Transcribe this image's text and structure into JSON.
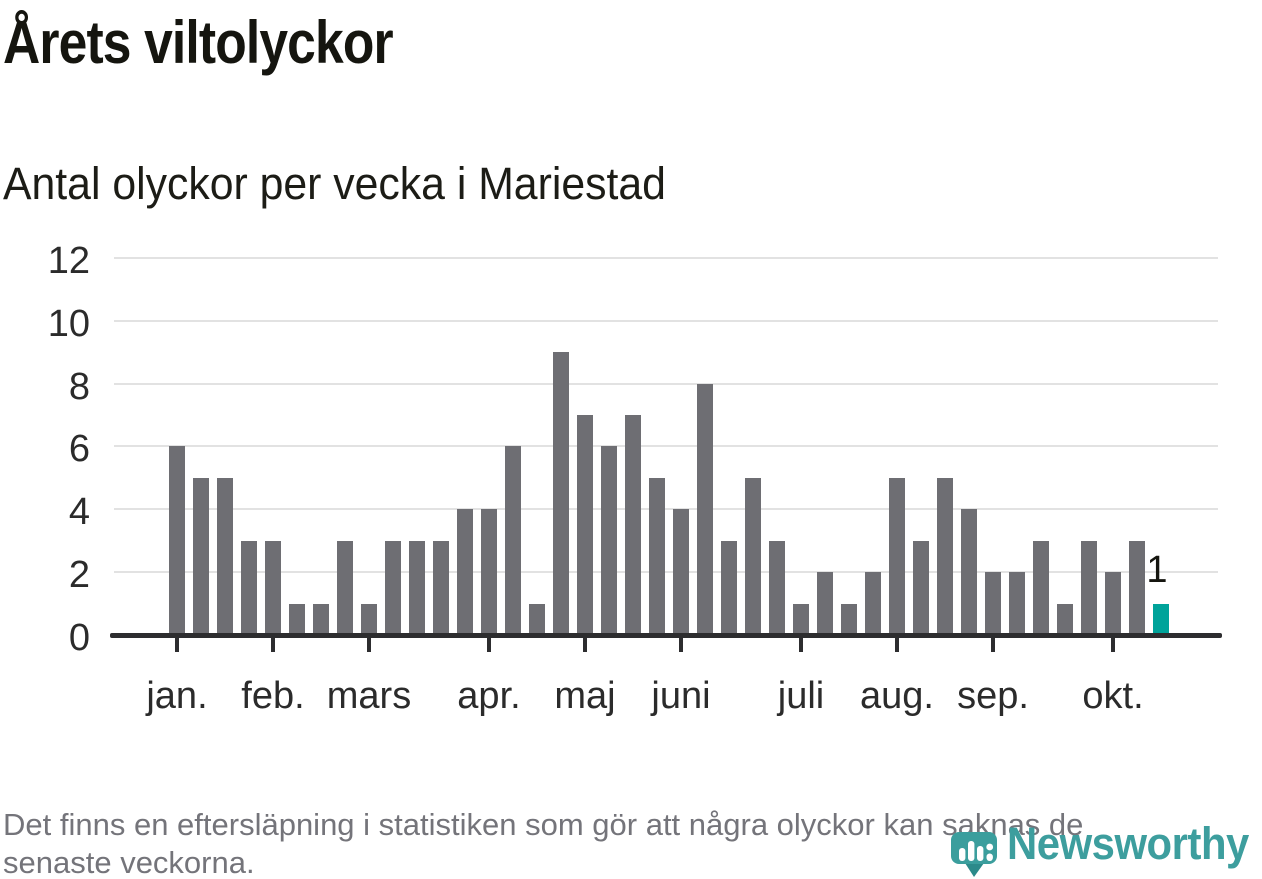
{
  "title": "Årets viltolyckor",
  "subtitle": "Antal olyckor per vecka i Mariestad",
  "footnote": {
    "lines": [
      "Det finns en eftersläpning i statistiken som gör att några olyckor kan saknas de",
      "senaste veckorna."
    ]
  },
  "logo": {
    "text": "Newsworthy"
  },
  "chart_data": {
    "type": "bar",
    "title": "Årets viltolyckor",
    "subtitle": "Antal olyckor per vecka i Mariestad",
    "x_unit": "vecka (week of year)",
    "first_week": 1,
    "values": [
      6,
      5,
      5,
      3,
      3,
      1,
      1,
      3,
      1,
      3,
      3,
      3,
      4,
      4,
      6,
      1,
      9,
      7,
      6,
      7,
      5,
      4,
      8,
      3,
      5,
      3,
      1,
      2,
      1,
      2,
      5,
      3,
      5,
      4,
      2,
      2,
      3,
      1,
      3,
      2,
      3,
      1
    ],
    "highlight_last_bar": true,
    "highlight_label": "1",
    "ylim": [
      0,
      12
    ],
    "y_ticks": [
      0,
      2,
      4,
      6,
      8,
      10,
      12
    ],
    "grid": "horizontal",
    "legend": "none",
    "month_ticks": [
      {
        "label": "jan.",
        "week": 1
      },
      {
        "label": "feb.",
        "week": 5
      },
      {
        "label": "mars",
        "week": 9
      },
      {
        "label": "apr.",
        "week": 14
      },
      {
        "label": "maj",
        "week": 18
      },
      {
        "label": "juni",
        "week": 22
      },
      {
        "label": "juli",
        "week": 27
      },
      {
        "label": "aug.",
        "week": 31
      },
      {
        "label": "sep.",
        "week": 35
      },
      {
        "label": "okt.",
        "week": 40
      }
    ],
    "colors": {
      "bar": "#6e6e73",
      "highlight": "#00a39a",
      "grid": "#e2e2e2",
      "axis": "#2d2d2f",
      "label": "#2b2b2b",
      "logo_teal": "#3d9e9e"
    }
  }
}
